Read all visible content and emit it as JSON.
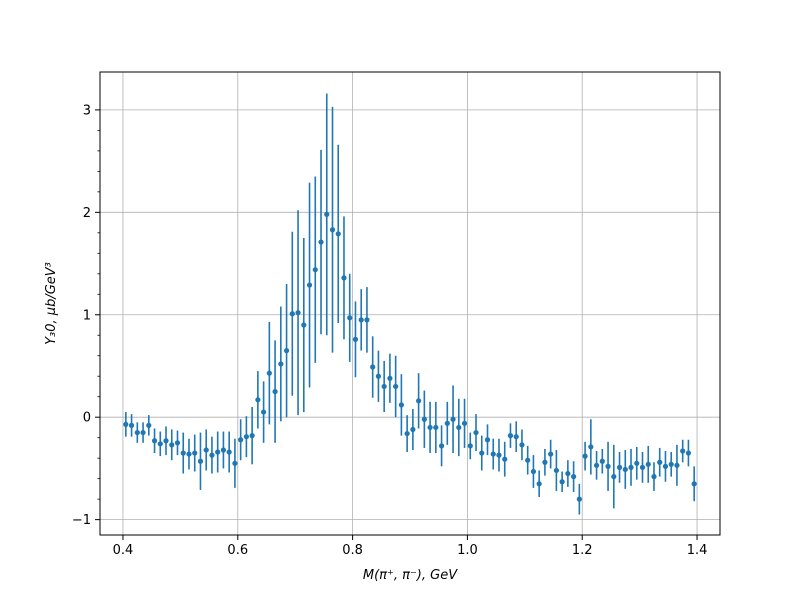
{
  "chart_data": {
    "type": "scatter",
    "title": "",
    "xlabel": "M(π⁺, π⁻), GeV",
    "ylabel": "Y₃0, μb/GeV³",
    "xlim": [
      0.36,
      1.44
    ],
    "ylim": [
      -1.15,
      3.37
    ],
    "xticks": [
      0.4,
      0.6,
      0.8,
      1.0,
      1.2,
      1.4
    ],
    "xtick_labels": [
      "0.4",
      "0.6",
      "0.8",
      "1.0",
      "1.2",
      "1.4"
    ],
    "yticks": [
      -1,
      0,
      1,
      2,
      3
    ],
    "ytick_labels": [
      "−1",
      "0",
      "1",
      "2",
      "3"
    ],
    "grid": true,
    "color": "#1f77b4",
    "error_bars": true,
    "x": [
      0.405,
      0.415,
      0.425,
      0.435,
      0.445,
      0.455,
      0.465,
      0.475,
      0.485,
      0.495,
      0.505,
      0.515,
      0.525,
      0.535,
      0.545,
      0.555,
      0.565,
      0.575,
      0.585,
      0.595,
      0.605,
      0.615,
      0.625,
      0.635,
      0.645,
      0.655,
      0.665,
      0.675,
      0.685,
      0.695,
      0.705,
      0.715,
      0.725,
      0.735,
      0.745,
      0.755,
      0.765,
      0.775,
      0.785,
      0.795,
      0.805,
      0.815,
      0.825,
      0.835,
      0.845,
      0.855,
      0.865,
      0.875,
      0.885,
      0.895,
      0.905,
      0.915,
      0.925,
      0.935,
      0.945,
      0.955,
      0.965,
      0.975,
      0.985,
      0.995,
      1.005,
      1.015,
      1.025,
      1.035,
      1.045,
      1.055,
      1.065,
      1.075,
      1.085,
      1.095,
      1.105,
      1.115,
      1.125,
      1.135,
      1.145,
      1.155,
      1.165,
      1.175,
      1.185,
      1.195,
      1.205,
      1.215,
      1.225,
      1.235,
      1.245,
      1.255,
      1.265,
      1.275,
      1.285,
      1.295,
      1.305,
      1.315,
      1.325,
      1.335,
      1.345,
      1.355,
      1.365,
      1.375,
      1.385,
      1.395
    ],
    "y": [
      -0.07,
      -0.08,
      -0.15,
      -0.15,
      -0.08,
      -0.23,
      -0.26,
      -0.23,
      -0.27,
      -0.25,
      -0.35,
      -0.36,
      -0.35,
      -0.43,
      -0.32,
      -0.37,
      -0.34,
      -0.32,
      -0.34,
      -0.45,
      -0.22,
      -0.19,
      -0.18,
      0.17,
      0.05,
      0.43,
      0.25,
      0.52,
      0.65,
      1.01,
      1.02,
      0.9,
      1.29,
      1.44,
      1.71,
      1.98,
      1.83,
      1.79,
      1.36,
      0.97,
      0.76,
      0.95,
      0.95,
      0.49,
      0.4,
      0.3,
      0.38,
      0.3,
      0.12,
      -0.16,
      -0.12,
      0.16,
      -0.02,
      -0.1,
      -0.1,
      -0.28,
      -0.06,
      -0.02,
      -0.1,
      -0.06,
      -0.28,
      -0.15,
      -0.35,
      -0.22,
      -0.36,
      -0.37,
      -0.41,
      -0.18,
      -0.19,
      -0.27,
      -0.42,
      -0.53,
      -0.65,
      -0.44,
      -0.36,
      -0.52,
      -0.63,
      -0.55,
      -0.58,
      -0.8,
      -0.38,
      -0.29,
      -0.47,
      -0.43,
      -0.48,
      -0.58,
      -0.49,
      -0.51,
      -0.49,
      -0.45,
      -0.49,
      -0.46,
      -0.58,
      -0.44,
      -0.48,
      -0.46,
      -0.47,
      -0.33,
      -0.35,
      -0.65
    ],
    "yerr": [
      0.12,
      0.11,
      0.1,
      0.1,
      0.1,
      0.12,
      0.12,
      0.14,
      0.15,
      0.12,
      0.2,
      0.15,
      0.18,
      0.28,
      0.2,
      0.18,
      0.2,
      0.18,
      0.2,
      0.24,
      0.2,
      0.2,
      0.28,
      0.28,
      0.3,
      0.5,
      0.5,
      0.56,
      0.65,
      0.8,
      1.0,
      0.85,
      1.0,
      0.91,
      0.9,
      1.18,
      1.2,
      0.87,
      0.6,
      0.43,
      0.37,
      0.3,
      0.32,
      0.3,
      0.25,
      0.25,
      0.24,
      0.3,
      0.3,
      0.18,
      0.2,
      0.27,
      0.28,
      0.25,
      0.25,
      0.2,
      0.21,
      0.33,
      0.28,
      0.24,
      0.13,
      0.18,
      0.17,
      0.15,
      0.15,
      0.16,
      0.17,
      0.12,
      0.15,
      0.15,
      0.14,
      0.16,
      0.13,
      0.13,
      0.14,
      0.2,
      0.1,
      0.13,
      0.15,
      0.15,
      0.14,
      0.27,
      0.14,
      0.12,
      0.24,
      0.31,
      0.15,
      0.19,
      0.18,
      0.16,
      0.15,
      0.18,
      0.14,
      0.14,
      0.15,
      0.12,
      0.2,
      0.11,
      0.13,
      0.17
    ]
  }
}
